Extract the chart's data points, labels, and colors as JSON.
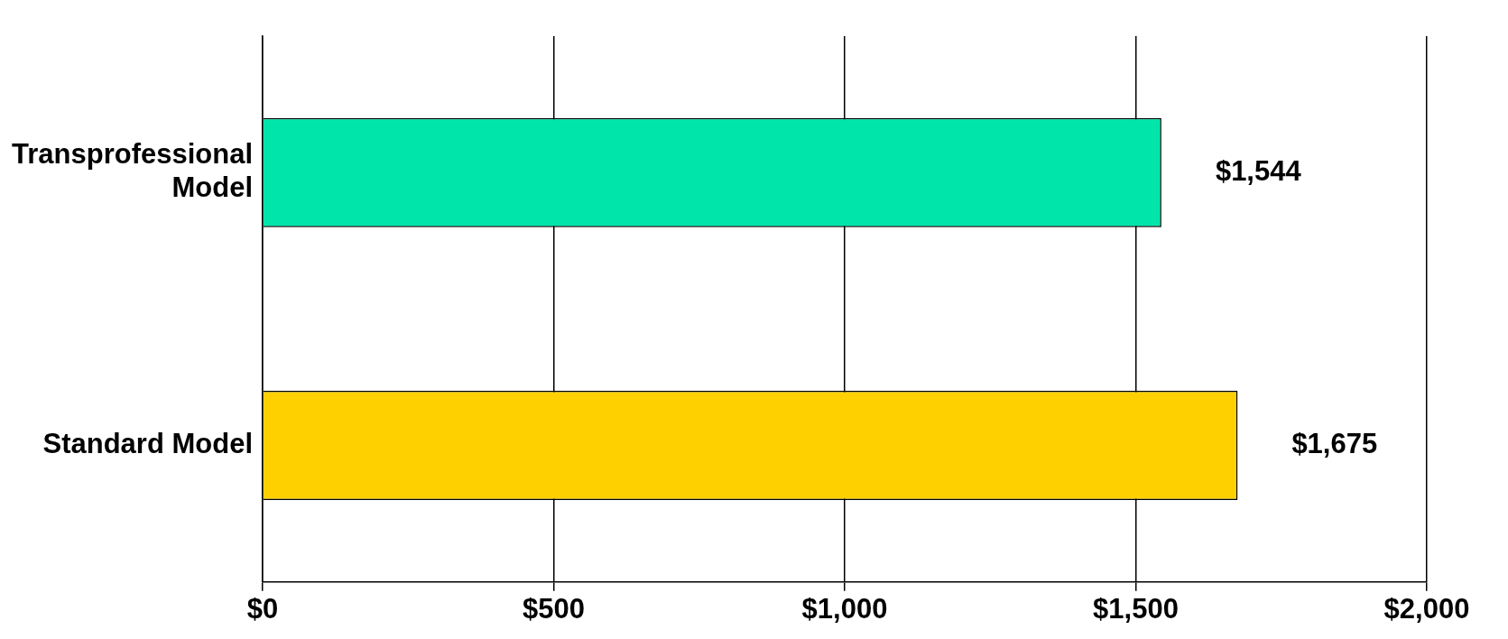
{
  "chart_data": {
    "type": "bar",
    "orientation": "horizontal",
    "categories": [
      "Transprofessional Model",
      "Standard Model"
    ],
    "values": [
      1544,
      1675
    ],
    "colors": [
      "#00e5aa",
      "#ffd000"
    ],
    "value_labels": [
      "$1,544",
      "$1,675"
    ],
    "xlim": [
      0,
      2000
    ],
    "xticks": [
      {
        "value": 0,
        "label": "$0"
      },
      {
        "value": 500,
        "label": "$500"
      },
      {
        "value": 1000,
        "label": "$1,000"
      },
      {
        "value": 1500,
        "label": "$1,500"
      },
      {
        "value": 2000,
        "label": "$2,000"
      }
    ],
    "grid": "x",
    "legend": false
  }
}
